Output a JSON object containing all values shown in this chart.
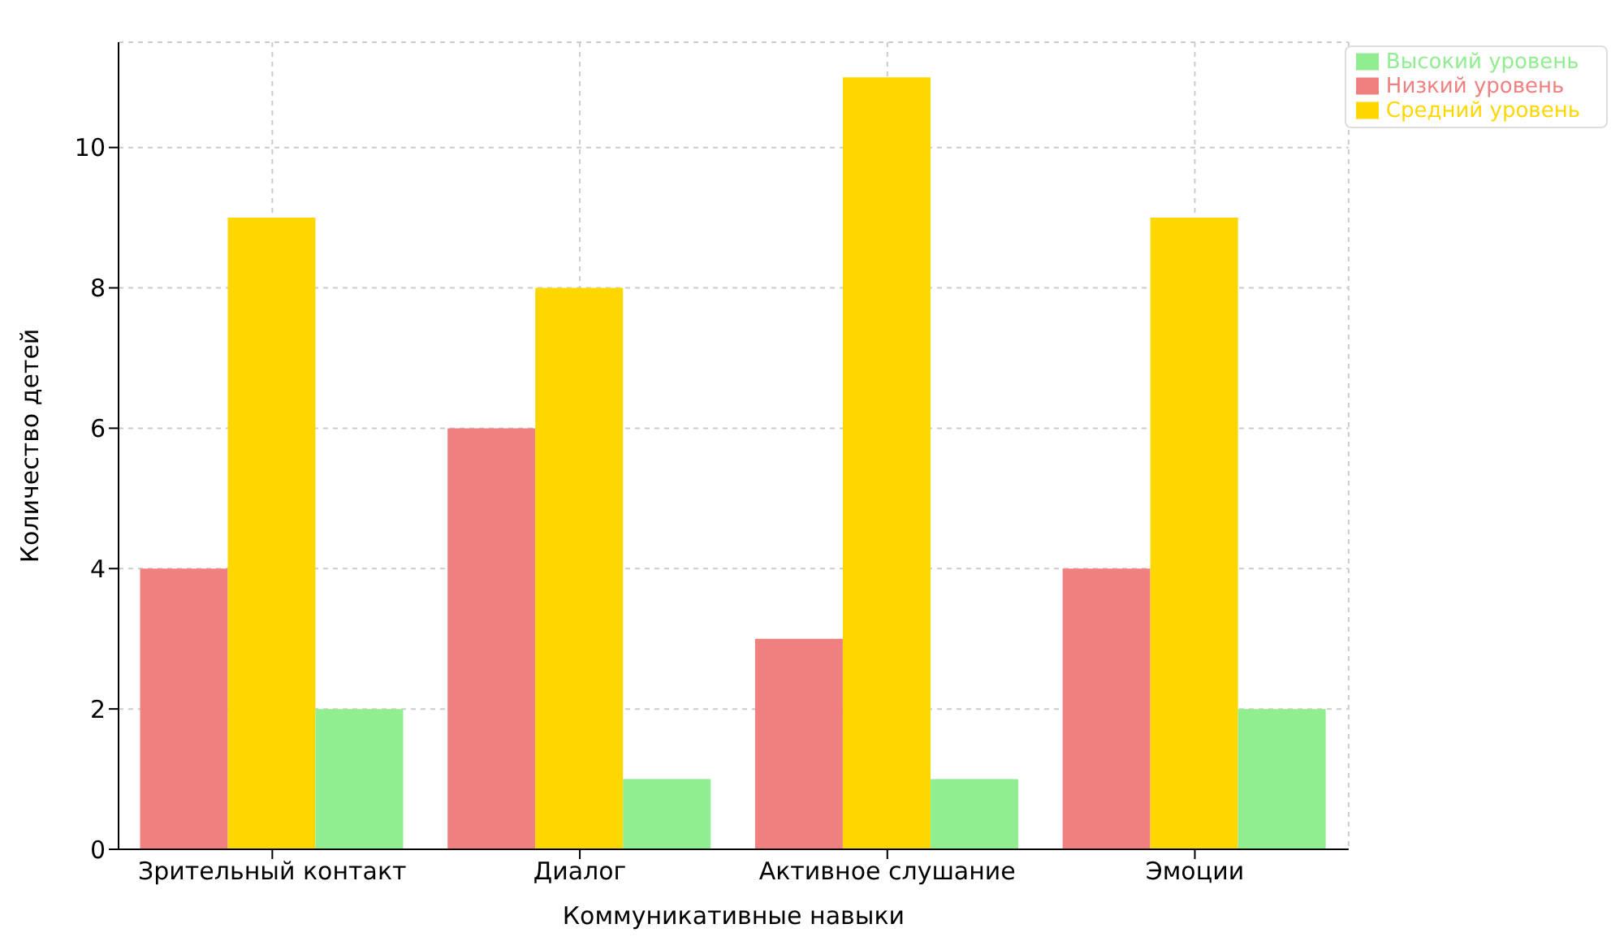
{
  "chart_data": {
    "type": "bar",
    "xlabel": "Коммуникативные навыки",
    "ylabel": "Количество детей",
    "categories": [
      "Зрительный контакт",
      "Диалог",
      "Активное слушание",
      "Эмоции"
    ],
    "series": [
      {
        "name": "Низкий уровень",
        "color": "#f08080",
        "values": [
          4,
          6,
          3,
          4
        ]
      },
      {
        "name": "Средний уровень",
        "color": "#ffd700",
        "values": [
          9,
          8,
          11,
          9
        ]
      },
      {
        "name": "Высокий уровень",
        "color": "#90ee90",
        "values": [
          2,
          1,
          1,
          2
        ]
      }
    ],
    "ylim": [
      0,
      11.5
    ],
    "yticks": [
      0,
      2,
      4,
      6,
      8,
      10
    ],
    "grid": true,
    "legend": "top right"
  }
}
